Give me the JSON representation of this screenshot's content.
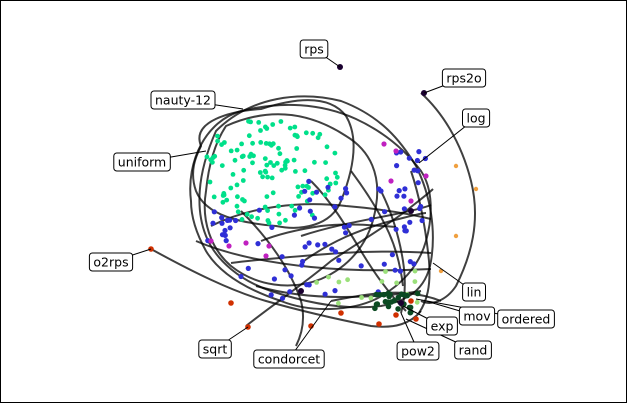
{
  "labels": [
    {
      "id": "rps",
      "text": "rps"
    },
    {
      "id": "rps2o",
      "text": "rps2o"
    },
    {
      "id": "nauty-12",
      "text": "nauty-12"
    },
    {
      "id": "log",
      "text": "log"
    },
    {
      "id": "uniform",
      "text": "uniform"
    },
    {
      "id": "o2rps",
      "text": "o2rps"
    },
    {
      "id": "lin",
      "text": "lin"
    },
    {
      "id": "mov",
      "text": "mov"
    },
    {
      "id": "ordered",
      "text": "ordered"
    },
    {
      "id": "exp",
      "text": "exp"
    },
    {
      "id": "sqrt",
      "text": "sqrt"
    },
    {
      "id": "rand",
      "text": "rand"
    },
    {
      "id": "pow2",
      "text": "pow2"
    },
    {
      "id": "condorcet",
      "text": "condorcet"
    }
  ],
  "colors": {
    "uniform_cluster": "#00e08a",
    "blue_points": "#2f2fd6",
    "magenta_points": "#c020c0",
    "red_points": "#d03000",
    "dark_points": "#1a0030",
    "light_green_points": "#9be07a",
    "orange_points": "#f0a040"
  }
}
